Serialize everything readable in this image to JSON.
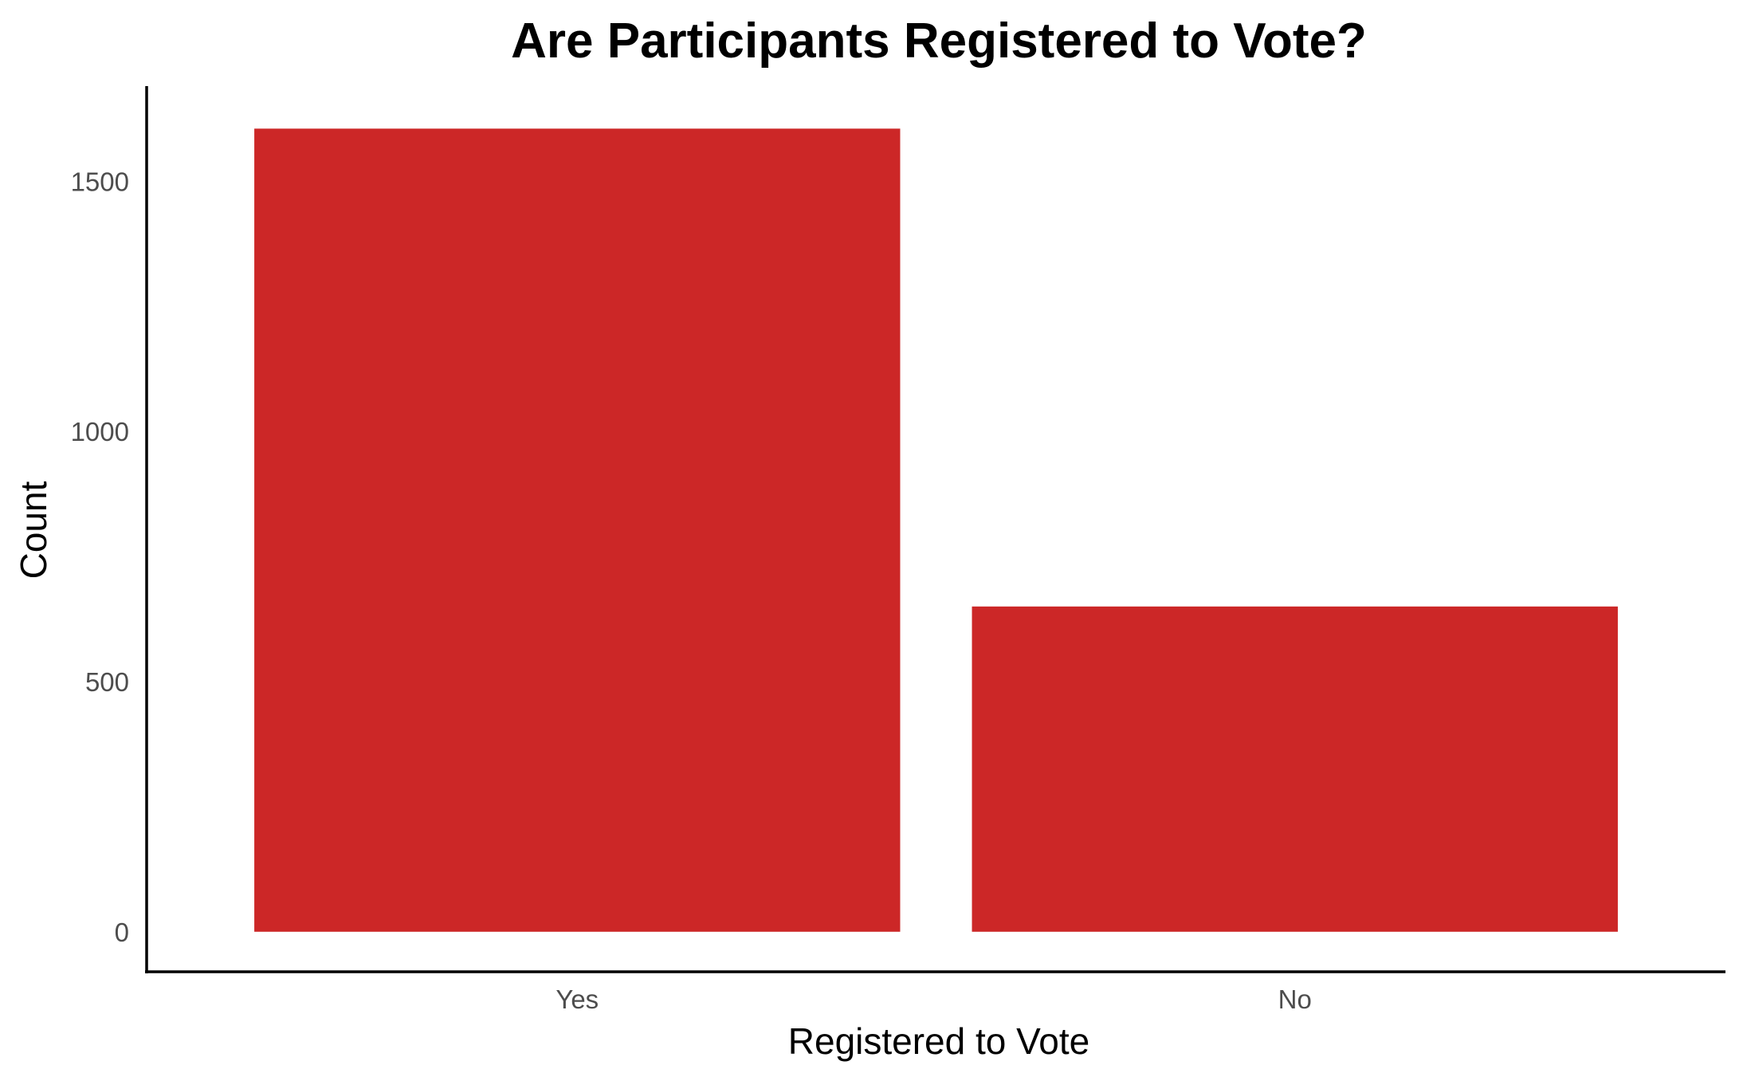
{
  "chart_data": {
    "type": "bar",
    "title": "Are Participants Registered to Vote?",
    "xlabel": "Registered to Vote",
    "ylabel": "Count",
    "categories": [
      "Yes",
      "No"
    ],
    "values": [
      1605,
      650
    ],
    "ylim": [
      -80,
      1690
    ],
    "yticks": [
      0,
      500,
      1000,
      1500
    ],
    "ytick_labels": [
      "0",
      "500",
      "1000",
      "1500"
    ],
    "bar_color": "#cc2727",
    "grid": false,
    "legend": "none"
  }
}
